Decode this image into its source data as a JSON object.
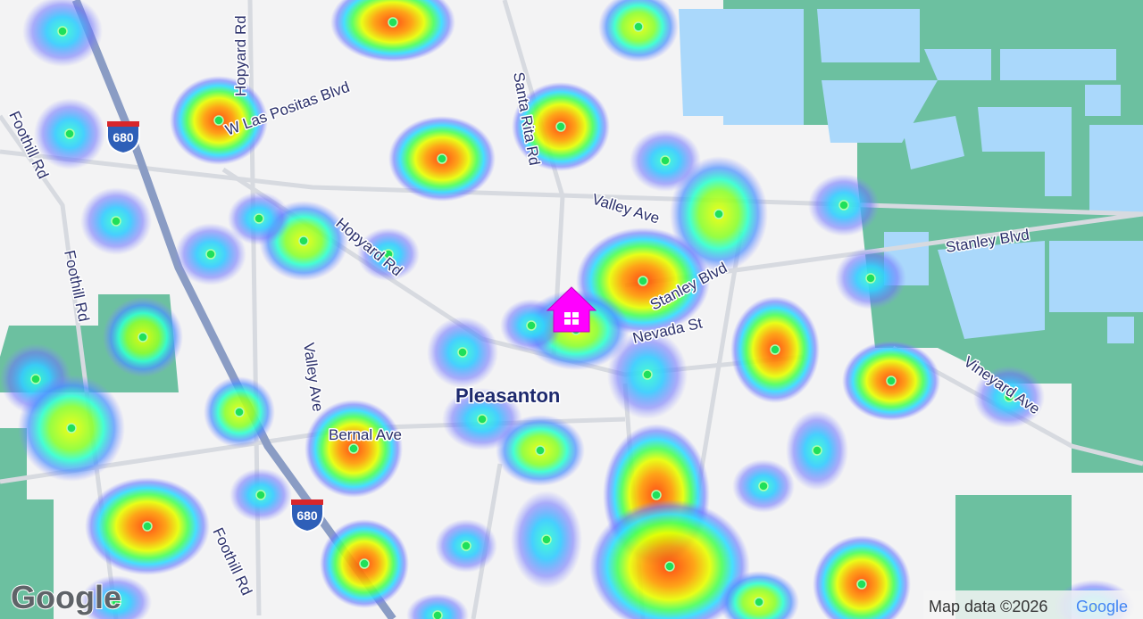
{
  "map": {
    "road_labels": [
      "Hopyard Rd",
      "W Las Positas Blvd",
      "Santa Rita Rd",
      "Foothill Rd",
      "Foothill Rd",
      "Valley Ave",
      "Hopyard Rd",
      "Stanley Blvd",
      "Stanley Blvd",
      "Nevada St",
      "Vineyard Ave",
      "Valley Ave",
      "Bernal Ave",
      "Foothill Rd"
    ],
    "city": "Pleasanton",
    "shields": [
      "680",
      "680"
    ],
    "logo": "Google",
    "attribution": {
      "text": "Map data ©2026",
      "brand": "Google"
    }
  }
}
